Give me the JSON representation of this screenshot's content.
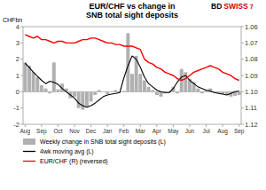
{
  "chart_data": {
    "type": "bar",
    "title": "EUR/CHF vs change in",
    "subtitle": "SNB total sight deposits",
    "y_label": "CHFbn",
    "annotations": [
      {
        "text": "BD",
        "color": "#000000"
      },
      {
        "text": "SWISS",
        "color": "#cc0000"
      },
      {
        "text": "7",
        "color": "#cc0000"
      }
    ],
    "categories": [
      "Aug",
      null,
      null,
      null,
      "Sep",
      null,
      null,
      null,
      "Oct",
      null,
      null,
      null,
      "Nov",
      null,
      null,
      null,
      "Dec",
      null,
      null,
      null,
      "Jan",
      null,
      null,
      null,
      "Feb",
      null,
      null,
      null,
      "Mar",
      null,
      null,
      null,
      "Apr",
      null,
      null,
      null,
      "May",
      null,
      null,
      null,
      "Jun",
      null,
      null,
      null,
      "Jul",
      null,
      null,
      null,
      "Aug",
      null,
      null,
      null,
      "Sep"
    ],
    "series": [
      {
        "name": "Weekly change in SNB total sight deposits (L)",
        "type": "bar",
        "color": "#b0b0b0",
        "values": [
          1.8,
          1.6,
          1.2,
          0.9,
          0.4,
          0.2,
          -0.1,
          1.8,
          0.15,
          0.5,
          0.2,
          -0.4,
          -0.3,
          -1.0,
          -1.1,
          -0.9,
          -0.6,
          -0.2,
          0.1,
          0.0,
          -0.15,
          0.0,
          0.1,
          0.0,
          0.05,
          3.6,
          1.1,
          2.2,
          1.1,
          0.7,
          0.3,
          0.1,
          -0.2,
          -0.3,
          -0.1,
          -0.05,
          0.3,
          -0.1,
          1.4,
          1.2,
          0.8,
          0.6,
          0.2,
          -0.1,
          0.1,
          0.2,
          -0.05,
          -0.1,
          -0.15,
          -0.2,
          -0.3,
          -0.25,
          -0.2
        ]
      },
      {
        "name": "4wk moving avg (L)",
        "type": "line",
        "color": "#000000",
        "values": [
          1.75,
          1.5,
          1.2,
          0.95,
          0.7,
          0.5,
          0.65,
          0.58,
          0.45,
          0.2,
          0.0,
          -0.2,
          -0.4,
          -0.7,
          -0.85,
          -0.95,
          -0.85,
          -0.7,
          -0.5,
          -0.3,
          -0.2,
          -0.15,
          -0.1,
          -0.05,
          0.85,
          1.6,
          2.2,
          2.0,
          1.5,
          0.9,
          0.5,
          0.3,
          0.1,
          0.0,
          -0.05,
          -0.05,
          0.2,
          0.6,
          0.9,
          1.0,
          0.7,
          0.5,
          0.3,
          0.2,
          0.1,
          0.05,
          -0.05,
          -0.1,
          -0.15,
          -0.2,
          -0.1,
          0.0,
          0.05
        ]
      },
      {
        "name": "EUR/CHF (R) (reversed)",
        "type": "line",
        "color": "#ff0000",
        "axis": "y2",
        "values": [
          1.065,
          1.066,
          1.067,
          1.066,
          1.068,
          1.068,
          1.069,
          1.07,
          1.069,
          1.069,
          1.07,
          1.07,
          1.07,
          1.069,
          1.068,
          1.068,
          1.067,
          1.067,
          1.068,
          1.069,
          1.07,
          1.07,
          1.071,
          1.071,
          1.072,
          1.072,
          1.072,
          1.073,
          1.074,
          1.08,
          1.082,
          1.083,
          1.085,
          1.086,
          1.088,
          1.089,
          1.09,
          1.092,
          1.093,
          1.092,
          1.09,
          1.088,
          1.087,
          1.086,
          1.085,
          1.084,
          1.085,
          1.086,
          1.088,
          1.089,
          1.09,
          1.092,
          1.093
        ]
      }
    ],
    "ylim": [
      -2,
      4
    ],
    "yticks": [
      -2,
      -1,
      0,
      1,
      2,
      3,
      4
    ],
    "y2lim": [
      1.12,
      1.06
    ],
    "y2ticks": [
      1.06,
      1.07,
      1.08,
      1.09,
      {
        "value": 1.1,
        "label": "1.10"
      },
      1.11,
      1.12
    ],
    "grid": false,
    "legend": "bottom"
  }
}
